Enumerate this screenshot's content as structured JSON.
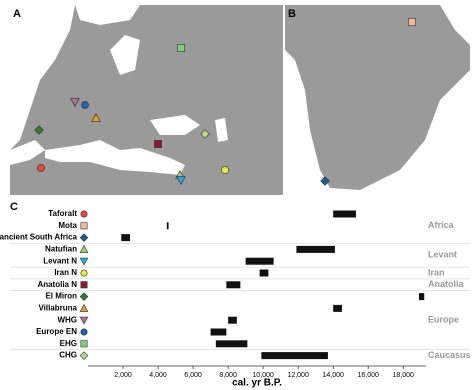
{
  "panels": {
    "a": "A",
    "b": "B",
    "c": "C"
  },
  "chart_data": {
    "type": "timeline",
    "x_label": "cal. yr B.P.",
    "xlim": [
      0,
      19300
    ],
    "xticks": [
      {
        "value": 2000,
        "label": "2,000"
      },
      {
        "value": 4000,
        "label": "4,000"
      },
      {
        "value": 6000,
        "label": "6,000"
      },
      {
        "value": 8000,
        "label": "8,000"
      },
      {
        "value": 10000,
        "label": "10,000"
      },
      {
        "value": 12000,
        "label": "12,000"
      },
      {
        "value": 14000,
        "label": "14,000"
      },
      {
        "value": 16000,
        "label": "16,000"
      },
      {
        "value": 18000,
        "label": "18,000"
      }
    ],
    "bar_color": "#111111",
    "groups": [
      {
        "name": "Africa",
        "rows": [
          {
            "label": "Taforalt",
            "start": 14000,
            "end": 15300,
            "marker": "circle",
            "color": "#e8453c"
          },
          {
            "label": "Mota",
            "start": 4500,
            "end": 4600,
            "marker": "square",
            "color": "#f0b89a"
          },
          {
            "label": "ancient South Africa",
            "start": 1900,
            "end": 2400,
            "marker": "diamond",
            "color": "#1f5f8b"
          }
        ]
      },
      {
        "name": "Levant",
        "rows": [
          {
            "label": "Natufian",
            "start": 11900,
            "end": 14100,
            "marker": "triangle",
            "color": "#9fcf6e"
          },
          {
            "label": "Levant N",
            "start": 9000,
            "end": 10600,
            "marker": "triangle-down",
            "color": "#2aa8d8"
          }
        ]
      },
      {
        "name": "Iran",
        "rows": [
          {
            "label": "Iran N",
            "start": 9800,
            "end": 10300,
            "marker": "circle",
            "color": "#e6e84a"
          }
        ]
      },
      {
        "name": "Anatolia",
        "rows": [
          {
            "label": "Anatolia N",
            "start": 7900,
            "end": 8700,
            "marker": "square",
            "color": "#8b1a3a"
          }
        ]
      },
      {
        "name": "Europe",
        "rows": [
          {
            "label": "El Miron",
            "start": 18900,
            "end": 19200,
            "marker": "diamond",
            "color": "#2e7d32"
          },
          {
            "label": "Villabruna",
            "start": 14000,
            "end": 14500,
            "marker": "triangle",
            "color": "#e0a030"
          },
          {
            "label": "WHG",
            "start": 8000,
            "end": 8500,
            "marker": "triangle-down",
            "color": "#b07090"
          },
          {
            "label": "Europe EN",
            "start": 7000,
            "end": 7900,
            "marker": "circle",
            "color": "#2b5fa8"
          },
          {
            "label": "EHG",
            "start": 7300,
            "end": 9100,
            "marker": "square",
            "color": "#7fcf7f"
          }
        ]
      },
      {
        "name": "Caucasus",
        "rows": [
          {
            "label": "CHG",
            "start": 9900,
            "end": 13700,
            "marker": "diamond",
            "color": "#b5d98a"
          }
        ]
      }
    ]
  }
}
